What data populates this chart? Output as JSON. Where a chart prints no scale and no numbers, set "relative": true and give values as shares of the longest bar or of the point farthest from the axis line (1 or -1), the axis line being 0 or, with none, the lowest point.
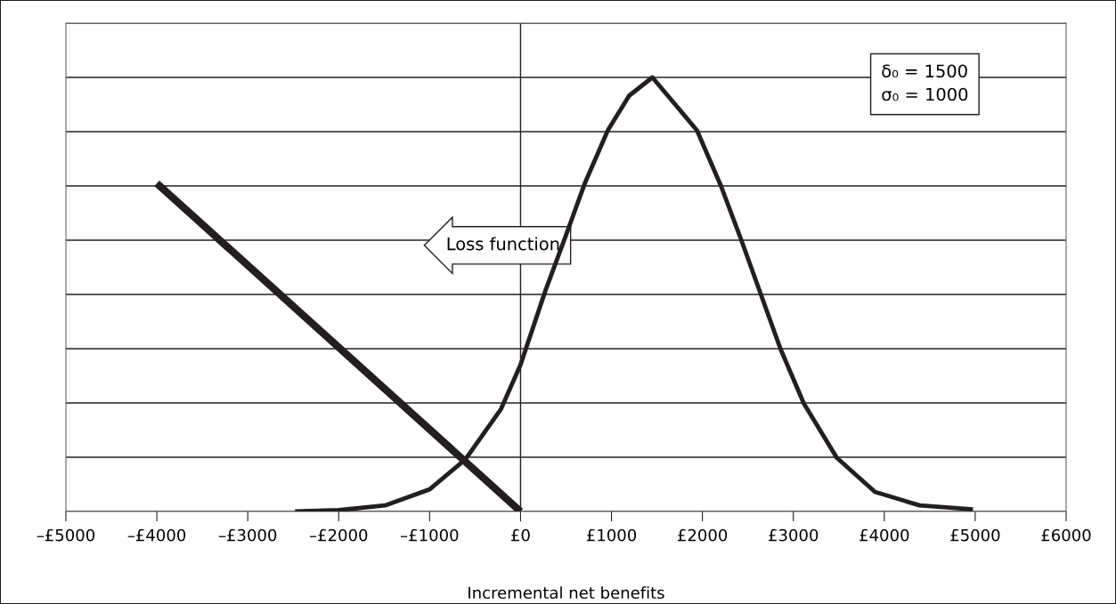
{
  "chart_data": {
    "type": "line",
    "relative": true,
    "xlabel": "Incremental net benefits",
    "xlim": [
      -5000,
      6000
    ],
    "xticks": [
      {
        "value": -5000,
        "label": "–£5000"
      },
      {
        "value": -4000,
        "label": "–£4000"
      },
      {
        "value": -3000,
        "label": "–£3000"
      },
      {
        "value": -2000,
        "label": "–£2000"
      },
      {
        "value": -1000,
        "label": "–£1000"
      },
      {
        "value": 0,
        "label": "£0"
      },
      {
        "value": 1000,
        "label": "£1000"
      },
      {
        "value": 2000,
        "label": "£2000"
      },
      {
        "value": 3000,
        "label": "£3000"
      },
      {
        "value": 4000,
        "label": "£4000"
      },
      {
        "value": 5000,
        "label": "£5000"
      },
      {
        "value": 6000,
        "label": "£6000"
      }
    ],
    "grid": "y",
    "tick_labels": "x",
    "marker": "none",
    "line_style": "solid",
    "ref_lines": [
      {
        "axis": "x",
        "value": 0,
        "color": "#231f20"
      }
    ],
    "series": [
      {
        "color": "#231f20",
        "x": [
          -2480,
          -2000,
          -1490,
          -1000,
          -607,
          -215,
          0,
          274,
          490,
          705,
          960,
          1195,
          1450,
          1940,
          2204,
          2430,
          2645,
          2860,
          3115,
          3477,
          3898,
          4388,
          4976
        ],
        "values": [
          0,
          0.003,
          0.014,
          0.051,
          0.12,
          0.236,
          0.338,
          0.509,
          0.631,
          0.755,
          0.878,
          0.958,
          1.0,
          0.878,
          0.75,
          0.624,
          0.499,
          0.374,
          0.249,
          0.124,
          0.045,
          0.014,
          0.005
        ]
      },
      {
        "color": "#231f20",
        "x": [
          -4000,
          0
        ],
        "values": [
          0.756,
          0
        ]
      }
    ],
    "annotations": [
      "Loss function",
      "δ₀ = 1500\nσ₀ = 1000"
    ]
  }
}
